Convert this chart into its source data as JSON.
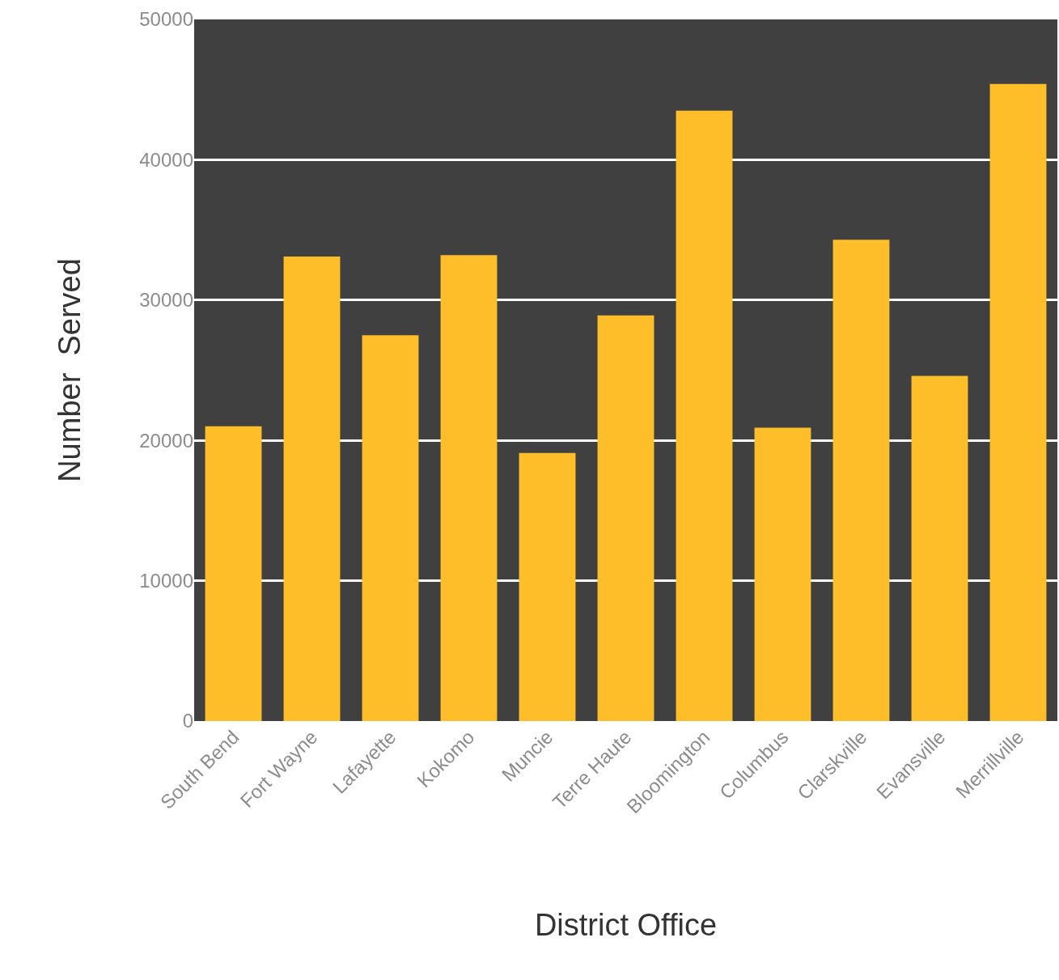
{
  "chart_data": {
    "type": "bar",
    "xlabel": "District Office",
    "ylabel": "Number  Served",
    "categories": [
      "South Bend",
      "Fort Wayne",
      "Lafayette",
      "Kokomo",
      "Muncie",
      "Terre Haute",
      "Bloomington",
      "Columbus",
      "Clarskville",
      "Evansville",
      "Merrillville"
    ],
    "values": [
      21000,
      33100,
      27500,
      33200,
      19100,
      28900,
      43500,
      20900,
      34300,
      24600,
      45400
    ],
    "color": "#fdbe2a",
    "ylim": [
      0,
      50000
    ],
    "yticks": [
      0,
      10000,
      20000,
      30000,
      40000,
      50000
    ],
    "grid": "y",
    "legend": false
  }
}
